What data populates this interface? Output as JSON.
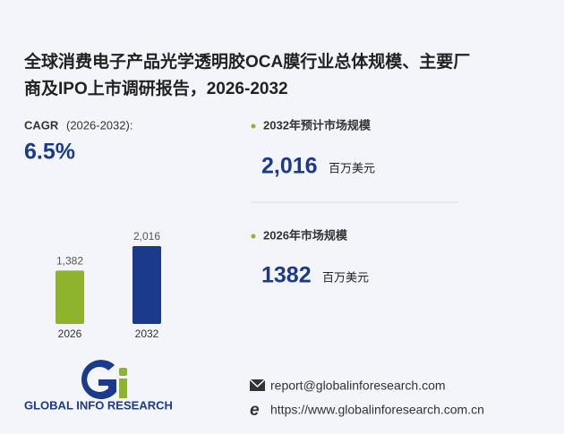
{
  "header": {
    "title_line1": "全球消费电子产品光学透明胶OCA膜行业总体规模、主要厂",
    "title_line2": "商及IPO上市调研报告，2026-2032"
  },
  "cagr": {
    "label": "CAGR",
    "period": "(2026-2032):",
    "value": "6.5%"
  },
  "stats": [
    {
      "label": "2032年预计市场规模",
      "value": "2,016",
      "unit": "百万美元"
    },
    {
      "label": "2026年市场规模",
      "value": "1382",
      "unit": "百万美元"
    }
  ],
  "chart": {
    "type": "bar",
    "categories": [
      "2026",
      "2032"
    ],
    "values": [
      1382,
      2016
    ],
    "value_labels": [
      "1,382",
      "2,016"
    ],
    "colors": [
      "#8db42c",
      "#1b3a8c"
    ]
  },
  "footer": {
    "logo_text": "GLOBAL INFO RESEARCH",
    "email": "report@globalinforesearch.com",
    "website": "https://www.globalinforesearch.com.cn"
  }
}
